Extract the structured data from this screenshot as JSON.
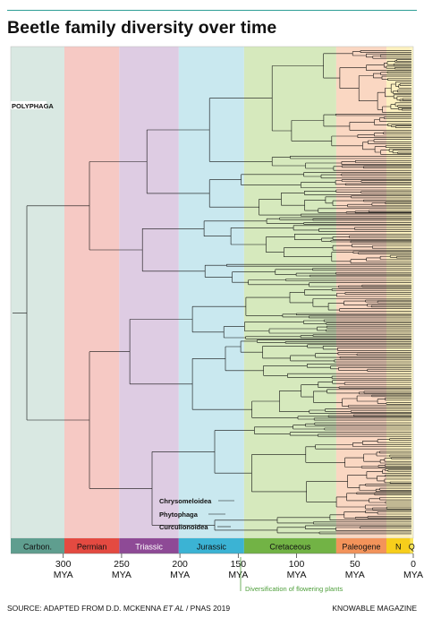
{
  "title": "Beetle family diversity over time",
  "labels": {
    "polyphaga": "POLYPHAGA",
    "chrysomeloidea": "Chrysomeloidea",
    "phytophaga": "Phytophaga",
    "curculionoidea": "Curculionoidea",
    "flowering": "Diversification of flowering plants"
  },
  "periods": [
    {
      "name": "Carbon.",
      "start": 345,
      "end": 299,
      "bg": "#d9e8e2",
      "bar": "#5f9e8f",
      "text": "#111111"
    },
    {
      "name": "Permian",
      "start": 299,
      "end": 252,
      "bg": "#f6c9c4",
      "bar": "#e44a41",
      "text": "#111111"
    },
    {
      "name": "Triassic",
      "start": 252,
      "end": 201,
      "bg": "#decce3",
      "bar": "#8e4a96",
      "text": "#ffffff"
    },
    {
      "name": "Jurassic",
      "start": 201,
      "end": 145,
      "bg": "#c9e8ef",
      "bar": "#3bb3d4",
      "text": "#111111"
    },
    {
      "name": "Cretaceous",
      "start": 145,
      "end": 66,
      "bg": "#d6e9bd",
      "bar": "#72b345",
      "text": "#111111"
    },
    {
      "name": "Paleogene",
      "start": 66,
      "end": 23,
      "bg": "#fad7c2",
      "bar": "#f3935a",
      "text": "#111111"
    },
    {
      "name": "N",
      "start": 23,
      "end": 2.6,
      "bg": "#fcf0bf",
      "bar": "#f7ce1b",
      "text": "#111111"
    },
    {
      "name": "Q",
      "start": 2.6,
      "end": 0,
      "bg": "#fdf6c8",
      "bar": "#fbe65a",
      "text": "#111111"
    }
  ],
  "axis": {
    "min": 0,
    "max": 345,
    "ticks": [
      {
        "value": 300,
        "label": "300",
        "unit": "MYA"
      },
      {
        "value": 250,
        "label": "250",
        "unit": "MYA"
      },
      {
        "value": 200,
        "label": "200",
        "unit": "MYA"
      },
      {
        "value": 150,
        "label": "150",
        "unit": "MYA"
      },
      {
        "value": 100,
        "label": "100",
        "unit": "MYA"
      },
      {
        "value": 50,
        "label": "50",
        "unit": "MYA"
      },
      {
        "value": 0,
        "label": "0",
        "unit": "MYA"
      }
    ]
  },
  "footer": {
    "source_prefix": "SOURCE: ADAPTED FROM D.D. MCKENNA ",
    "source_italic": "ET AL",
    "source_suffix": " / PNAS 2019",
    "credit": "KNOWABLE MAGAZINE"
  },
  "colors": {
    "accent": "#2f9e95",
    "tree_line": "#111111",
    "flowering": "#4d9e3a"
  }
}
